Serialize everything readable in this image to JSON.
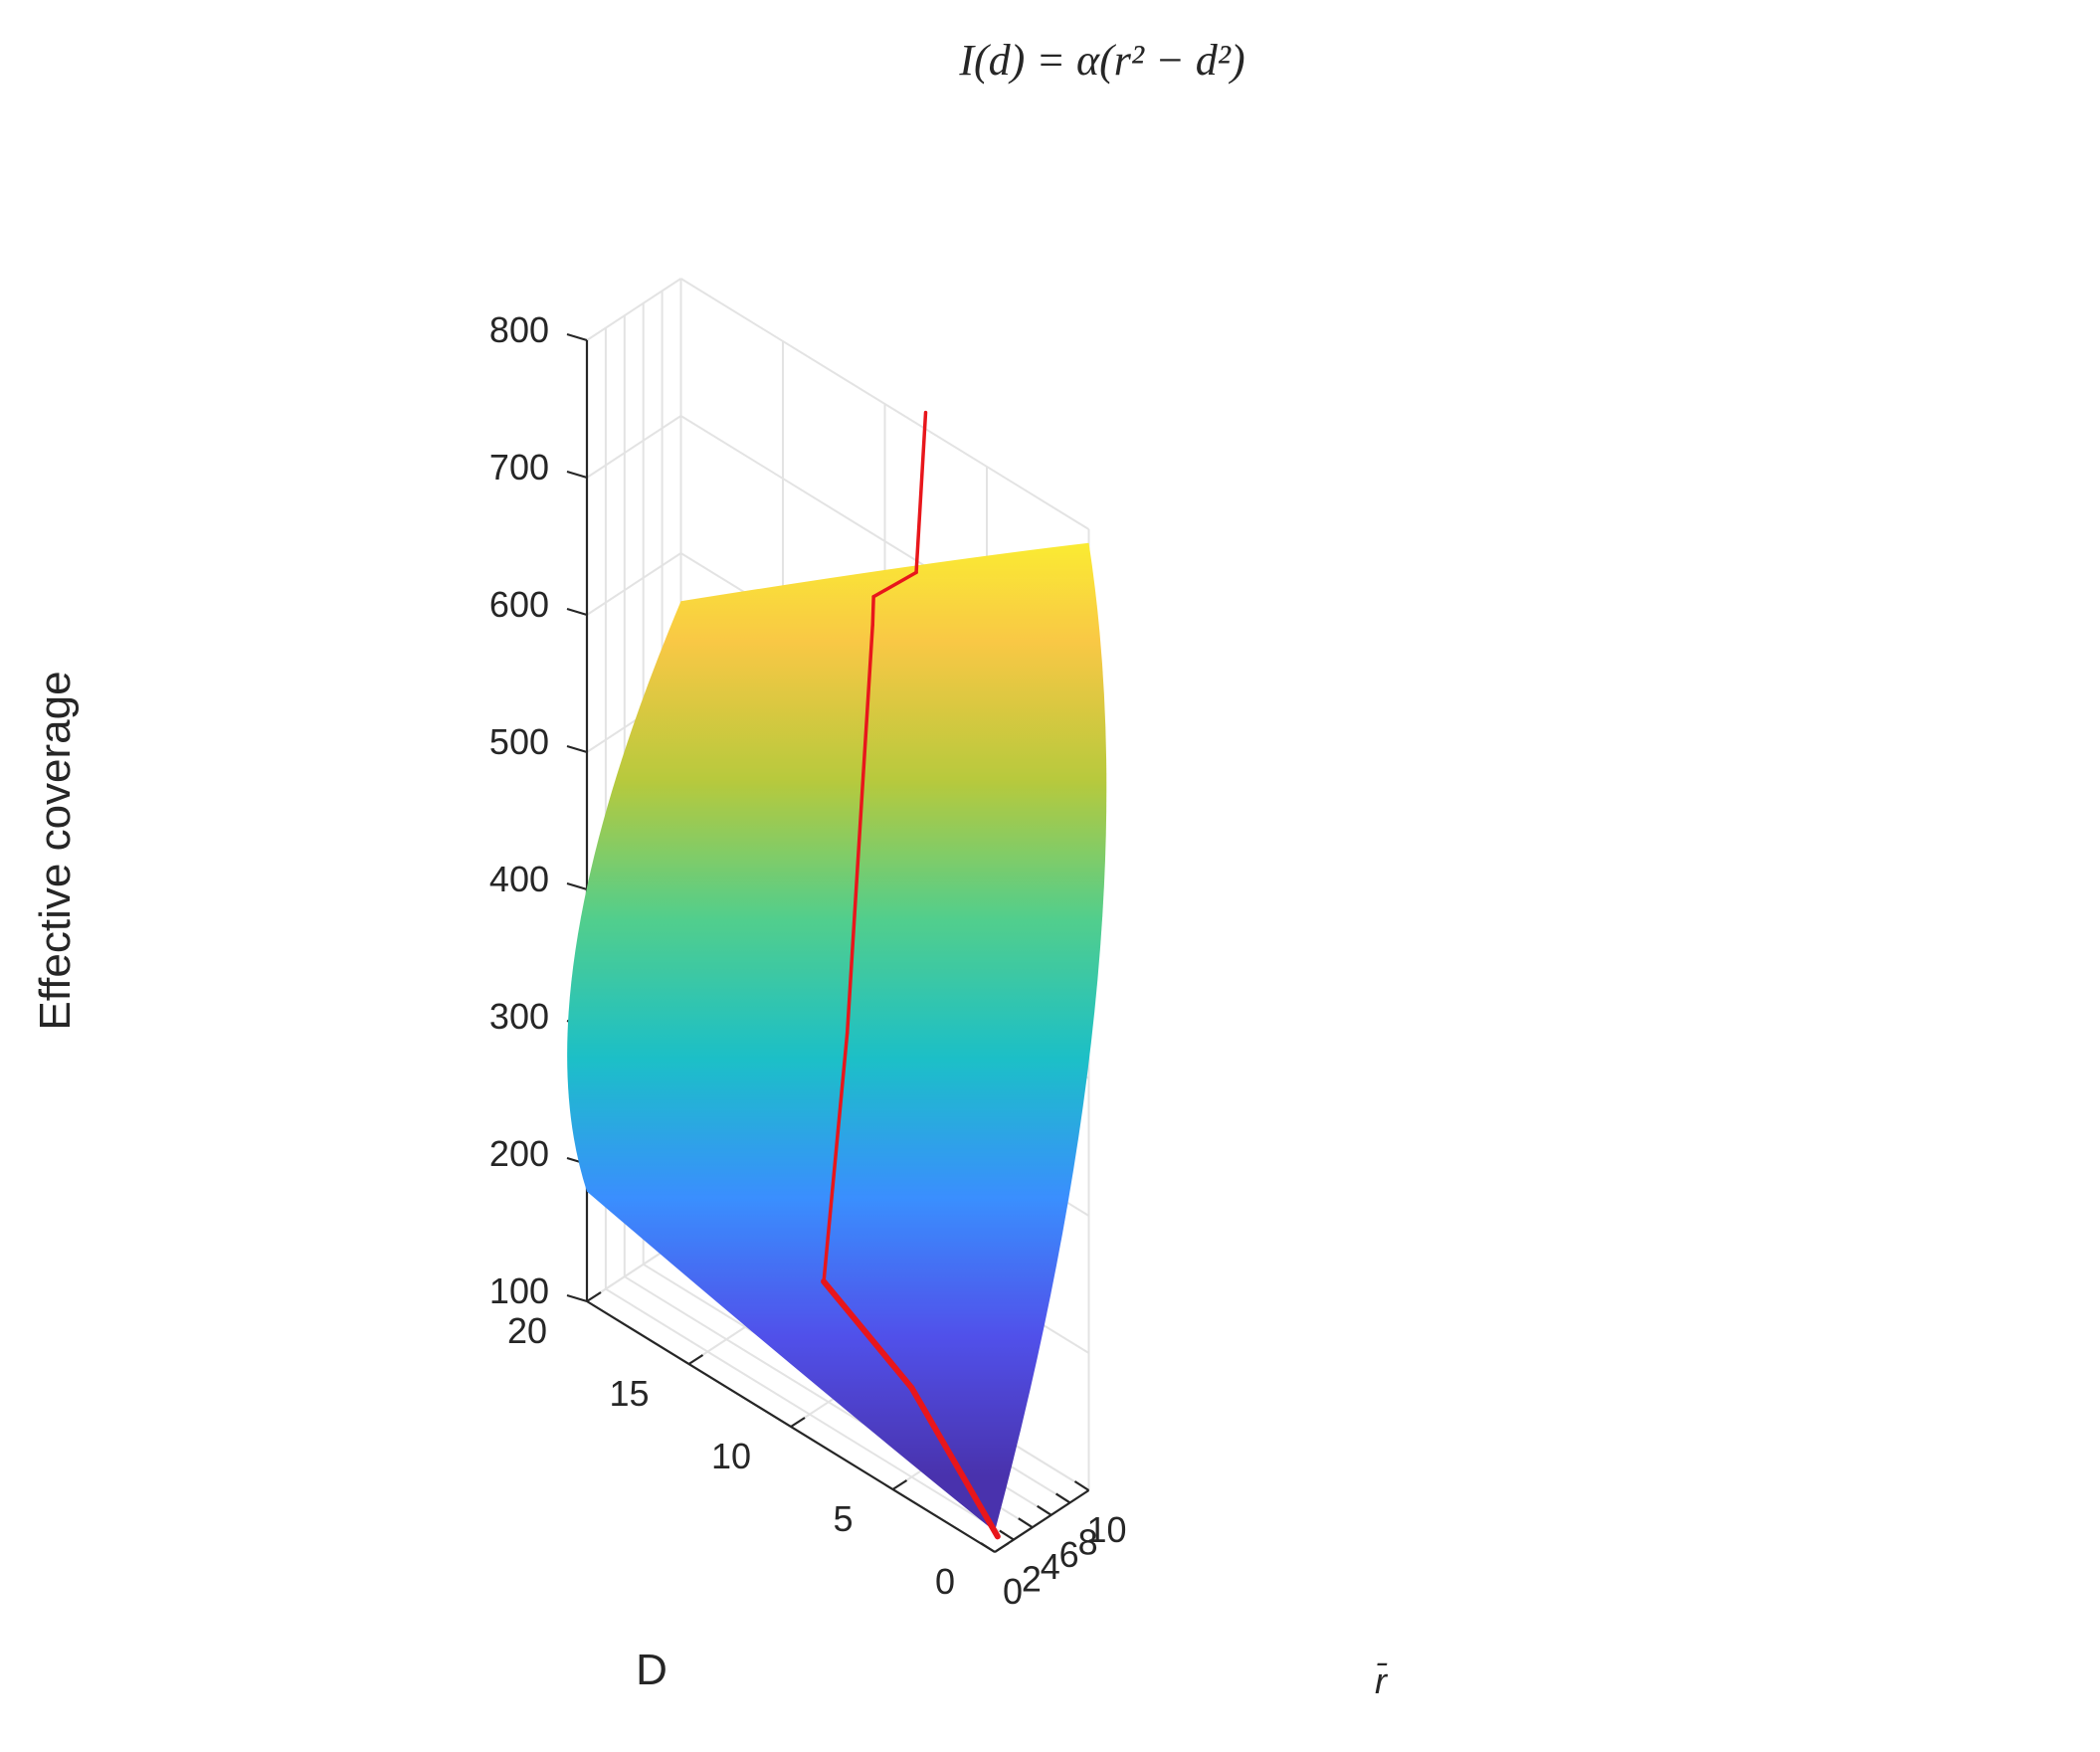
{
  "chart_data": {
    "type": "surface3d",
    "title": "I(d) = α(r² − d²)",
    "xlabel": "r̄",
    "ylabel": "D",
    "zlabel": "Effective coverage",
    "x_ticks": [
      "0",
      "2",
      "4",
      "6",
      "8",
      "10"
    ],
    "y_ticks": [
      "0",
      "5",
      "10",
      "15",
      "20"
    ],
    "z_ticks": [
      "100",
      "200",
      "300",
      "400",
      "500",
      "600",
      "700",
      "800"
    ],
    "xlim": [
      0,
      10
    ],
    "ylim": [
      0,
      20
    ],
    "zlim": [
      100,
      800
    ],
    "grid": true,
    "colormap": [
      "#3e26a8",
      "#4646e9",
      "#2e88fe",
      "#0ebcc4",
      "#47cb86",
      "#b3c631",
      "#f9c53a",
      "#fafa1e"
    ],
    "surface": {
      "corners": [
        {
          "r": 0,
          "D": 20,
          "coverage": 180
        },
        {
          "r": 0,
          "D": 0,
          "coverage": 115
        },
        {
          "r": 10,
          "D": 0,
          "coverage": 790
        },
        {
          "r": 10,
          "D": 20,
          "coverage": 565
        }
      ]
    },
    "red_path": {
      "color": "#e8161b",
      "points": [
        {
          "r": 0.3,
          "D": 0,
          "coverage": 110
        },
        {
          "r": 2.0,
          "D": 5,
          "coverage": 165
        },
        {
          "r": 3.5,
          "D": 10,
          "coverage": 190
        },
        {
          "r": 6.0,
          "D": 10,
          "coverage": 360
        },
        {
          "r": 7.7,
          "D": 10,
          "coverage": 540
        },
        {
          "r": 8.7,
          "D": 10,
          "coverage": 645
        },
        {
          "r": 8.8,
          "D": 10,
          "coverage": 665
        },
        {
          "r": 9.0,
          "D": 8,
          "coverage": 700
        },
        {
          "r": 10.0,
          "D": 8,
          "coverage": 812
        }
      ]
    }
  }
}
